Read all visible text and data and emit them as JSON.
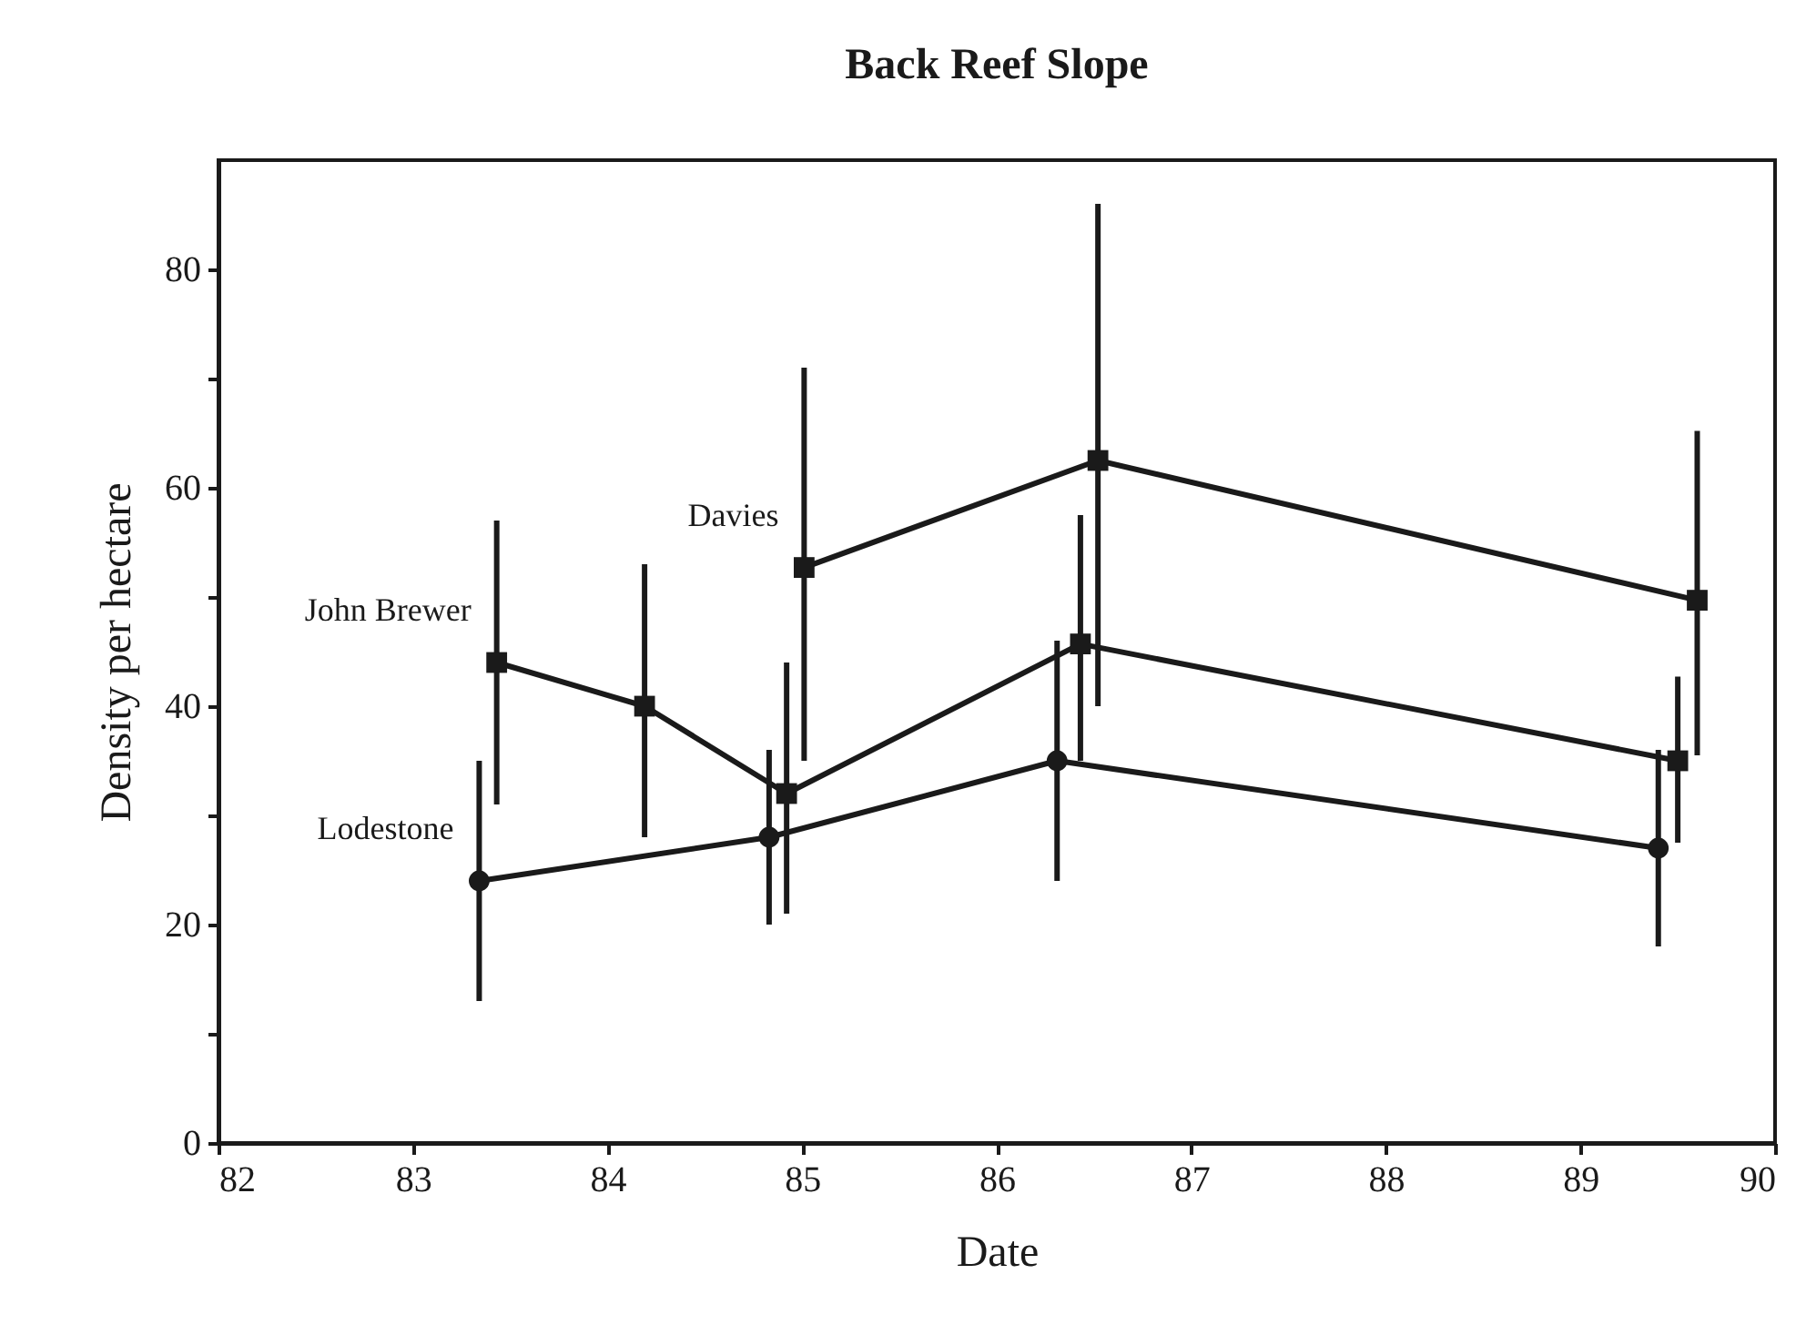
{
  "chart_data": {
    "type": "line",
    "title": "Back Reef Slope",
    "xlabel": "Date",
    "ylabel": "Density per hectare",
    "xlim": [
      82,
      90
    ],
    "xticks": [
      82,
      83,
      84,
      85,
      86,
      87,
      88,
      89,
      90
    ],
    "ylim": [
      0,
      90
    ],
    "yticks": [
      0,
      {
        "value": 10,
        "label": null
      },
      20,
      {
        "value": 30,
        "label": null
      },
      40,
      {
        "value": 50,
        "label": null
      },
      60,
      {
        "value": 70,
        "label": null
      },
      80
    ],
    "grid": false,
    "line_style": "solid",
    "series": [
      {
        "name": "Lodestone",
        "color": "#1a1a1a",
        "marker": "circle",
        "x": [
          83.34,
          84.83,
          86.31,
          89.4
        ],
        "values": [
          24,
          28,
          35,
          27
        ],
        "errors": [
          [
            13,
            35
          ],
          [
            20,
            36
          ],
          [
            24,
            46
          ],
          [
            18,
            36
          ]
        ]
      },
      {
        "name": "John Brewer",
        "color": "#1a1a1a",
        "marker": "square",
        "x": [
          83.43,
          84.19,
          84.92,
          86.43,
          89.5
        ],
        "values": [
          44,
          40,
          32,
          45.7,
          35
        ],
        "errors": [
          [
            31,
            57
          ],
          [
            28,
            53
          ],
          [
            21,
            44
          ],
          [
            35,
            57.5
          ],
          [
            27.5,
            42.7
          ]
        ]
      },
      {
        "name": "Davies",
        "color": "#1a1a1a",
        "marker": "square",
        "x": [
          85.01,
          86.52,
          89.6
        ],
        "values": [
          52.7,
          62.5,
          49.7
        ],
        "errors": [
          [
            35,
            71
          ],
          [
            40,
            86
          ],
          [
            35.5,
            65.2
          ]
        ]
      }
    ]
  }
}
